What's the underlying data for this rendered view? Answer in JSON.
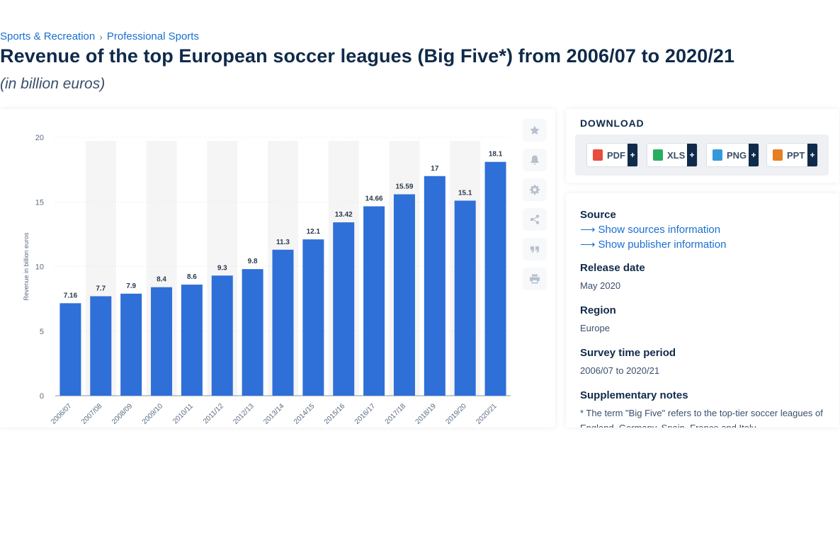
{
  "breadcrumb": {
    "level1": "Sports & Recreation",
    "separator": "›",
    "level2": "Professional Sports"
  },
  "header": {
    "title": "Revenue of the top European soccer leagues (Big Five*) from 2006/07 to 2020/21",
    "subtitle": "(in billion euros)"
  },
  "colors": {
    "bar": "#2f6fd8",
    "band": "#f5f5f5",
    "grid": "#dde3ea",
    "link": "#1a6fd0",
    "text": "#0f2a4a"
  },
  "toolbar": {
    "icons": [
      "star-icon",
      "bell-icon",
      "gear-icon",
      "share-icon",
      "quote-icon",
      "print-icon"
    ]
  },
  "download": {
    "title": "DOWNLOAD",
    "buttons": [
      {
        "label": "PDF",
        "plus": "+",
        "color": "#e74c3c"
      },
      {
        "label": "XLS",
        "plus": "+",
        "color": "#27ae60"
      },
      {
        "label": "PNG",
        "plus": "+",
        "color": "#3498db"
      },
      {
        "label": "PPT",
        "plus": "+",
        "color": "#e67e22"
      }
    ]
  },
  "info": {
    "source_heading": "Source",
    "show_sources": "Show sources information",
    "show_publisher": "Show publisher information",
    "release_heading": "Release date",
    "release_value": "May 2020",
    "region_heading": "Region",
    "region_value": "Europe",
    "survey_heading": "Survey time period",
    "survey_value": "2006/07 to 2020/21",
    "notes_heading": "Supplementary notes",
    "notes_value": "* The term \"Big Five\" refers to the top-tier soccer leagues of England, Germany, Spain, France and Italy."
  },
  "chart_data": {
    "type": "bar",
    "categories": [
      "2006/07",
      "2007/08",
      "2008/09",
      "2009/10",
      "2010/11",
      "2011/12",
      "2012/13",
      "2013/14",
      "2014/15",
      "2015/16",
      "2016/17",
      "2017/18",
      "2018/19",
      "2019/20",
      "2020/21"
    ],
    "values": [
      7.16,
      7.7,
      7.9,
      8.4,
      8.6,
      9.3,
      9.8,
      11.3,
      12.1,
      13.42,
      14.66,
      15.59,
      17,
      15.1,
      18.1
    ],
    "value_labels": [
      "7.16",
      "7.7",
      "7.9",
      "8.4",
      "8.6",
      "9.3",
      "9.8",
      "11.3",
      "12.1",
      "13.42",
      "14.66",
      "15.59",
      "17",
      "15.1",
      "18.1"
    ],
    "ylabel": "Revenue in billion euros",
    "xlabel": "",
    "ylim": [
      0,
      20
    ],
    "yticks": [
      0,
      5,
      10,
      15,
      20
    ],
    "grid": true,
    "legend": "none"
  }
}
